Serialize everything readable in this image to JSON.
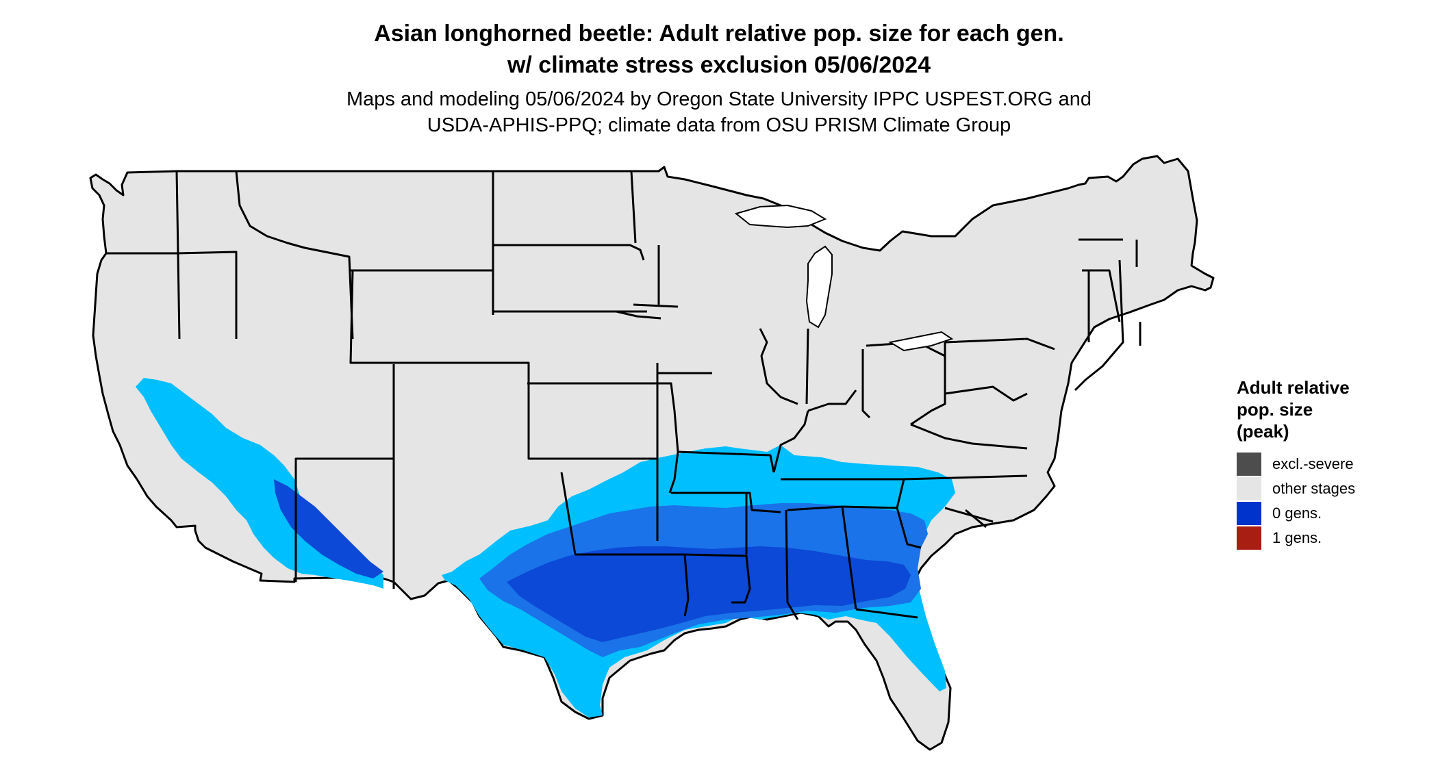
{
  "title": {
    "line1": "Asian longhorned beetle: Adult relative pop. size for each gen.",
    "line2": "w/ climate stress exclusion 05/06/2024"
  },
  "subtitle": {
    "line1": "Maps and modeling 05/06/2024 by Oregon State University IPPC USPEST.ORG and",
    "line2": "USDA-APHIS-PPQ; climate data from OSU PRISM Climate Group"
  },
  "legend": {
    "title_lines": [
      "Adult relative",
      "pop. size",
      "(peak)"
    ],
    "items": [
      {
        "label": "excl.-severe",
        "color": "#4d4d4d"
      },
      {
        "label": "other stages",
        "color": "#e5e5e5"
      },
      {
        "label": "0 gens.",
        "color": "#0033cc"
      },
      {
        "label": "1 gens.",
        "color": "#a91e12"
      }
    ]
  },
  "colors": {
    "land": "#e5e5e5",
    "light_blue": "#00bfff",
    "mid_blue": "#1a73e8",
    "dark_blue": "#0b49d6",
    "border": "#000000"
  }
}
